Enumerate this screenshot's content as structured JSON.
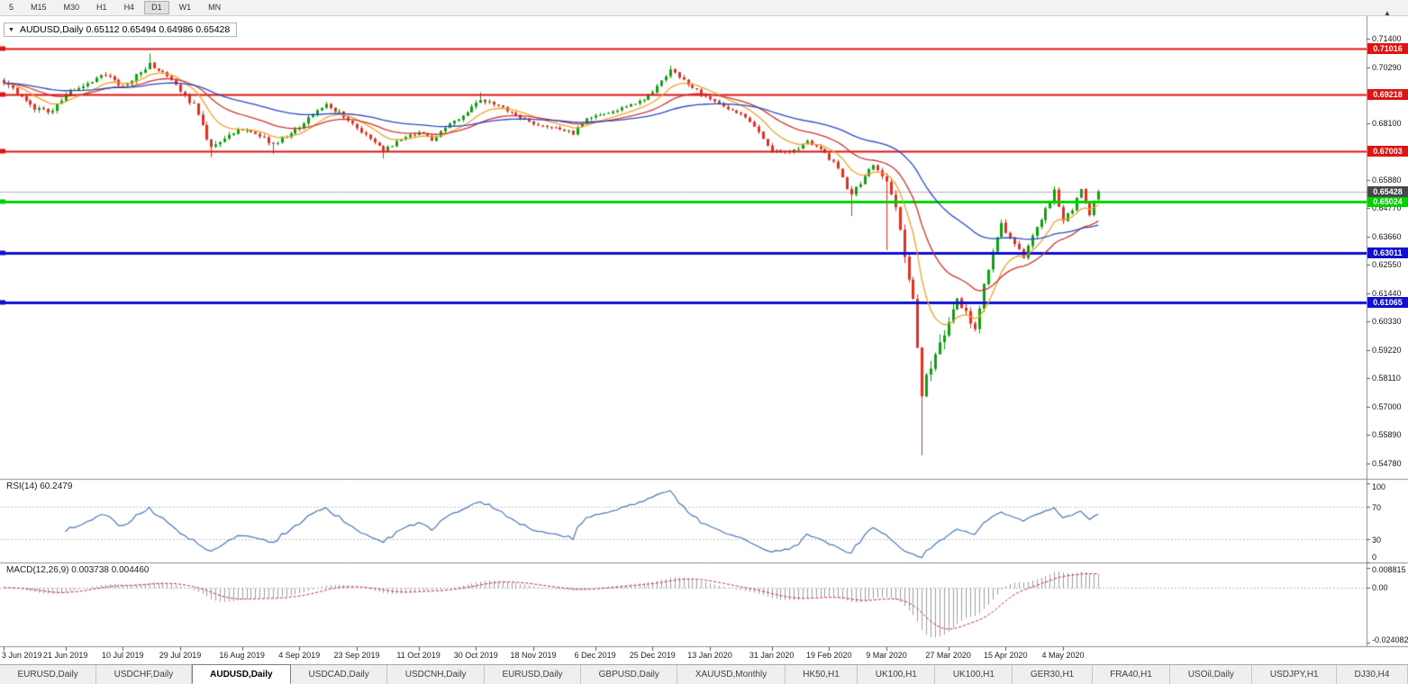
{
  "icons": {
    "collapse": "▼",
    "scroll_marker": "▲"
  },
  "toolbar": {
    "timeframes": [
      {
        "label": "5",
        "active": false
      },
      {
        "label": "M15",
        "active": false
      },
      {
        "label": "M30",
        "active": false
      },
      {
        "label": "H1",
        "active": false
      },
      {
        "label": "H4",
        "active": false
      },
      {
        "label": "D1",
        "active": true
      },
      {
        "label": "W1",
        "active": false
      },
      {
        "label": "MN",
        "active": false
      }
    ]
  },
  "chart": {
    "symbol": "AUDUSD",
    "period": "Daily",
    "title": "AUDUSD,Daily 0.65112 0.65494 0.64986 0.65428",
    "open": "0.65112",
    "high": "0.65494",
    "low": "0.64986",
    "close": "0.65428",
    "axis_ticks": [
      "0.71400",
      "0.70290",
      "0.68100",
      "0.65880",
      "0.64770",
      "0.63660",
      "0.62550",
      "0.61440",
      "0.60330",
      "0.59220",
      "0.58110",
      "0.57000",
      "0.55890",
      "0.54780"
    ],
    "levels": [
      {
        "price": 0.71016,
        "label": "0.71016",
        "color": "#DC1414",
        "width": 2
      },
      {
        "price": 0.69218,
        "label": "0.69218",
        "color": "#DC1414",
        "width": 2
      },
      {
        "price": 0.67003,
        "label": "0.67003",
        "color": "#DC1414",
        "width": 2
      },
      {
        "price": 0.65024,
        "label": "0.65024",
        "color": "#00D400",
        "width": 3
      },
      {
        "price": 0.63011,
        "label": "0.63011",
        "color": "#0F0FCF",
        "width": 3
      },
      {
        "price": 0.61065,
        "label": "0.61065",
        "color": "#0F0FCF",
        "width": 3
      }
    ],
    "bid": {
      "price": 0.65428,
      "label": "0.65428",
      "tag_color": "#43484D",
      "line_color": "#B4B4B4"
    }
  },
  "rsi": {
    "header": "RSI(14) 60.2479",
    "period": 14,
    "value": "60.2479",
    "color": "#4A77B8",
    "axis": [
      "100",
      "70",
      "30",
      "0"
    ],
    "dotted_levels": [
      70,
      30
    ]
  },
  "macd": {
    "header": "MACD(12,26,9) 0.003738 0.004460",
    "fast": 12,
    "slow": 26,
    "signal": 9,
    "macd_value": "0.003738",
    "signal_value": "0.004460",
    "hist_color": "#9AA0A6",
    "signal_color": "#CC2A2A",
    "axis": [
      "0.008815",
      "0.00",
      "-0.024082"
    ]
  },
  "tabs": {
    "items": [
      {
        "label": "EURUSD,Daily",
        "active": false
      },
      {
        "label": "USDCHF,Daily",
        "active": false
      },
      {
        "label": "AUDUSD,Daily",
        "active": true
      },
      {
        "label": "USDCAD,Daily",
        "active": false
      },
      {
        "label": "USDCNH,Daily",
        "active": false
      },
      {
        "label": "EURUSD,Daily",
        "active": false
      },
      {
        "label": "GBPUSD,Daily",
        "active": false
      },
      {
        "label": "XAUUSD,Monthly",
        "active": false
      },
      {
        "label": "HK50,H1",
        "active": false
      },
      {
        "label": "UK100,H1",
        "active": false
      },
      {
        "label": "UK100,H1",
        "active": false
      },
      {
        "label": "GER30,H1",
        "active": false
      },
      {
        "label": "FRA40,H1",
        "active": false
      },
      {
        "label": "USOil,Daily",
        "active": false
      },
      {
        "label": "USDJPY,H1",
        "active": false
      },
      {
        "label": "DJ30,H4",
        "active": false
      }
    ]
  },
  "chart_data": {
    "type": "candlestick",
    "symbol": "AUDUSD",
    "timeframe": "Daily",
    "num_candles": 249,
    "price_axis": {
      "min": 0.5418,
      "max": 0.7228
    },
    "colors": {
      "up": "#0FA00F",
      "down": "#E03224"
    },
    "anchors": [
      [
        0,
        0.6975,
        0.0016
      ],
      [
        3,
        0.693,
        0.0016
      ],
      [
        7,
        0.687,
        0.0016
      ],
      [
        11,
        0.6855,
        0.0015
      ],
      [
        14,
        0.6925,
        0.0015
      ],
      [
        18,
        0.696,
        0.0015
      ],
      [
        23,
        0.7005,
        0.0015
      ],
      [
        27,
        0.695,
        0.0014
      ],
      [
        33,
        0.7042,
        0.0015
      ],
      [
        37,
        0.7,
        0.0014
      ],
      [
        40,
        0.693,
        0.0014
      ],
      [
        43,
        0.6878,
        0.0016
      ],
      [
        47,
        0.6715,
        0.0018
      ],
      [
        50,
        0.6748,
        0.0015
      ],
      [
        54,
        0.6788,
        0.0013
      ],
      [
        57,
        0.6768,
        0.0012
      ],
      [
        61,
        0.6728,
        0.0013
      ],
      [
        64,
        0.6762,
        0.0013
      ],
      [
        67,
        0.679,
        0.0013
      ],
      [
        70,
        0.6845,
        0.0013
      ],
      [
        73,
        0.688,
        0.0012
      ],
      [
        76,
        0.6852,
        0.0012
      ],
      [
        80,
        0.679,
        0.0012
      ],
      [
        83,
        0.6752,
        0.0012
      ],
      [
        86,
        0.6706,
        0.0013
      ],
      [
        90,
        0.6745,
        0.0013
      ],
      [
        94,
        0.6772,
        0.0012
      ],
      [
        97,
        0.6745,
        0.0011
      ],
      [
        101,
        0.6802,
        0.0012
      ],
      [
        105,
        0.6858,
        0.0012
      ],
      [
        108,
        0.6902,
        0.0012
      ],
      [
        112,
        0.688,
        0.0011
      ],
      [
        116,
        0.6842,
        0.0011
      ],
      [
        120,
        0.6806,
        0.0011
      ],
      [
        124,
        0.6796,
        0.001
      ],
      [
        129,
        0.677,
        0.001
      ],
      [
        132,
        0.683,
        0.0011
      ],
      [
        136,
        0.6846,
        0.0011
      ],
      [
        140,
        0.6866,
        0.0011
      ],
      [
        144,
        0.6892,
        0.0011
      ],
      [
        147,
        0.6932,
        0.0012
      ],
      [
        151,
        0.702,
        0.0012
      ],
      [
        154,
        0.698,
        0.0012
      ],
      [
        158,
        0.6922,
        0.0011
      ],
      [
        162,
        0.6882,
        0.0011
      ],
      [
        166,
        0.6852,
        0.0011
      ],
      [
        170,
        0.6802,
        0.0011
      ],
      [
        174,
        0.6702,
        0.0012
      ],
      [
        178,
        0.6692,
        0.0012
      ],
      [
        182,
        0.6736,
        0.0012
      ],
      [
        186,
        0.6692,
        0.0012
      ],
      [
        189,
        0.6632,
        0.0014
      ],
      [
        192,
        0.6525,
        0.0018
      ],
      [
        195,
        0.66,
        0.002
      ],
      [
        197,
        0.664,
        0.002
      ],
      [
        200,
        0.6582,
        0.0024
      ],
      [
        202,
        0.649,
        0.0026
      ],
      [
        204,
        0.6285,
        0.0032
      ],
      [
        206,
        0.612,
        0.0038
      ],
      [
        208,
        0.5765,
        0.005
      ],
      [
        210,
        0.5855,
        0.0042
      ],
      [
        212,
        0.5935,
        0.0038
      ],
      [
        214,
        0.603,
        0.0032
      ],
      [
        216,
        0.6128,
        0.0028
      ],
      [
        218,
        0.6062,
        0.0026
      ],
      [
        220,
        0.6012,
        0.0024
      ],
      [
        222,
        0.618,
        0.0022
      ],
      [
        226,
        0.642,
        0.002
      ],
      [
        229,
        0.6332,
        0.0017
      ],
      [
        231,
        0.6282,
        0.0017
      ],
      [
        234,
        0.6402,
        0.0016
      ],
      [
        238,
        0.6542,
        0.0016
      ],
      [
        240,
        0.6432,
        0.0015
      ],
      [
        242,
        0.6472,
        0.0014
      ],
      [
        244,
        0.6552,
        0.0014
      ],
      [
        246,
        0.6448,
        0.0013
      ],
      [
        247,
        0.6502,
        0.0011
      ],
      [
        248,
        0.65428,
        0.001
      ]
    ],
    "wick_overrides": [
      [
        33,
        "high",
        0.7082
      ],
      [
        47,
        "low",
        0.6677
      ],
      [
        61,
        "low",
        0.6689
      ],
      [
        86,
        "low",
        0.6671
      ],
      [
        108,
        "high",
        0.693
      ],
      [
        151,
        "high",
        0.7035
      ],
      [
        192,
        "low",
        0.6446
      ],
      [
        200,
        "low",
        0.6313
      ],
      [
        208,
        "low",
        0.551
      ]
    ],
    "last_candle": {
      "open": 0.65112,
      "high": 0.65494,
      "low": 0.64986,
      "close": 0.65428
    },
    "moving_averages": [
      {
        "period": 10,
        "method": "ema",
        "color": "#EFA32B"
      },
      {
        "period": 24,
        "method": "ema",
        "color": "#D2342E"
      },
      {
        "period": 55,
        "method": "ema",
        "color": "#2B49C4"
      }
    ],
    "date_labels": [
      {
        "i": 0,
        "t": "3 Jun 2019"
      },
      {
        "i": 14,
        "t": "21 Jun 2019"
      },
      {
        "i": 27,
        "t": "10 Jul 2019"
      },
      {
        "i": 40,
        "t": "29 Jul 2019"
      },
      {
        "i": 54,
        "t": "16 Aug 2019"
      },
      {
        "i": 67,
        "t": "4 Sep 2019"
      },
      {
        "i": 80,
        "t": "23 Sep 2019"
      },
      {
        "i": 94,
        "t": "11 Oct 2019"
      },
      {
        "i": 107,
        "t": "30 Oct 2019"
      },
      {
        "i": 120,
        "t": "18 Nov 2019"
      },
      {
        "i": 134,
        "t": "6 Dec 2019"
      },
      {
        "i": 147,
        "t": "25 Dec 2019"
      },
      {
        "i": 160,
        "t": "13 Jan 2020"
      },
      {
        "i": 174,
        "t": "31 Jan 2020"
      },
      {
        "i": 187,
        "t": "19 Feb 2020"
      },
      {
        "i": 200,
        "t": "9 Mar 2020"
      },
      {
        "i": 214,
        "t": "27 Mar 2020"
      },
      {
        "i": 227,
        "t": "15 Apr 2020"
      },
      {
        "i": 240,
        "t": "4 May 2020"
      }
    ],
    "indicators": {
      "rsi": {
        "period": 14,
        "current": 60.2479
      },
      "macd": {
        "fast": 12,
        "slow": 26,
        "signal": 9,
        "macd_current": 0.003738,
        "signal_current": 0.00446
      }
    }
  }
}
